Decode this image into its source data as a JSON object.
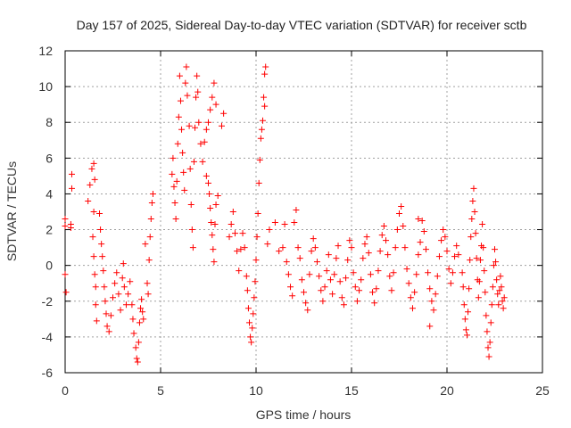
{
  "chart_data": {
    "type": "scatter",
    "title": "Day 157 of 2025, Sidereal Day-to-day VTEC variation (SDTVAR) for receiver sctb",
    "xlabel": "GPS time / hours",
    "ylabel": "SDTVAR / TECUs",
    "xlim": [
      0,
      25
    ],
    "ylim": [
      -6,
      12
    ],
    "xticks": [
      0,
      5,
      10,
      15,
      20,
      25
    ],
    "yticks": [
      -6,
      -4,
      -2,
      0,
      2,
      4,
      6,
      8,
      10,
      12
    ],
    "grid": true,
    "marker": "+",
    "colors": {
      "series": "#ff0000",
      "grid": "#a0a0a0",
      "axis": "#000000"
    },
    "series": [
      {
        "name": "SDTVAR",
        "points": [
          [
            0.0,
            -0.5
          ],
          [
            0.0,
            2.6
          ],
          [
            0.0,
            2.2
          ],
          [
            0.05,
            -1.5
          ],
          [
            0.3,
            2.3
          ],
          [
            0.3,
            2.1
          ],
          [
            0.35,
            4.3
          ],
          [
            0.35,
            5.1
          ],
          [
            1.2,
            3.6
          ],
          [
            1.3,
            4.5
          ],
          [
            1.4,
            5.4
          ],
          [
            1.5,
            5.7
          ],
          [
            1.55,
            4.8
          ],
          [
            1.5,
            3.0
          ],
          [
            1.45,
            1.6
          ],
          [
            1.5,
            0.5
          ],
          [
            1.55,
            -0.5
          ],
          [
            1.6,
            -1.2
          ],
          [
            1.6,
            -2.2
          ],
          [
            1.65,
            -3.1
          ],
          [
            1.8,
            2.9
          ],
          [
            1.85,
            2.0
          ],
          [
            1.9,
            1.2
          ],
          [
            1.95,
            0.5
          ],
          [
            2.0,
            -0.3
          ],
          [
            2.05,
            -1.2
          ],
          [
            2.1,
            -2.0
          ],
          [
            2.15,
            -2.7
          ],
          [
            2.2,
            -3.4
          ],
          [
            2.3,
            -3.7
          ],
          [
            2.4,
            -2.8
          ],
          [
            2.5,
            -1.8
          ],
          [
            2.6,
            -1.0
          ],
          [
            2.7,
            -0.4
          ],
          [
            2.8,
            -1.6
          ],
          [
            2.9,
            -2.5
          ],
          [
            3.0,
            -0.7
          ],
          [
            3.05,
            0.1
          ],
          [
            3.1,
            -1.2
          ],
          [
            3.2,
            -2.2
          ],
          [
            3.3,
            -1.6
          ],
          [
            3.4,
            -0.9
          ],
          [
            3.5,
            -2.2
          ],
          [
            3.55,
            -3.0
          ],
          [
            3.6,
            -3.8
          ],
          [
            3.7,
            -4.6
          ],
          [
            3.75,
            -5.2
          ],
          [
            3.8,
            -5.4
          ],
          [
            3.85,
            -4.3
          ],
          [
            3.9,
            -3.2
          ],
          [
            3.95,
            -2.4
          ],
          [
            4.0,
            -1.9
          ],
          [
            4.05,
            -2.6
          ],
          [
            4.1,
            -3.0
          ],
          [
            4.2,
            1.2
          ],
          [
            4.3,
            -1.0
          ],
          [
            4.35,
            -1.6
          ],
          [
            4.4,
            0.3
          ],
          [
            4.45,
            1.6
          ],
          [
            4.5,
            2.6
          ],
          [
            4.55,
            3.5
          ],
          [
            4.6,
            4.0
          ],
          [
            5.6,
            5.1
          ],
          [
            5.65,
            6.0
          ],
          [
            5.7,
            4.4
          ],
          [
            5.75,
            3.5
          ],
          [
            5.8,
            2.6
          ],
          [
            5.85,
            4.7
          ],
          [
            5.9,
            6.8
          ],
          [
            5.95,
            8.3
          ],
          [
            6.0,
            10.6
          ],
          [
            6.05,
            9.2
          ],
          [
            6.1,
            7.6
          ],
          [
            6.15,
            6.3
          ],
          [
            6.2,
            5.2
          ],
          [
            6.25,
            4.2
          ],
          [
            6.3,
            10.2
          ],
          [
            6.35,
            11.1
          ],
          [
            6.4,
            9.5
          ],
          [
            6.5,
            7.8
          ],
          [
            6.55,
            5.4
          ],
          [
            6.6,
            3.4
          ],
          [
            6.65,
            2.0
          ],
          [
            6.7,
            1.0
          ],
          [
            6.75,
            5.8
          ],
          [
            6.8,
            7.7
          ],
          [
            6.85,
            9.4
          ],
          [
            6.9,
            10.6
          ],
          [
            6.95,
            9.7
          ],
          [
            7.0,
            8.0
          ],
          [
            7.1,
            6.8
          ],
          [
            7.2,
            5.8
          ],
          [
            7.3,
            6.9
          ],
          [
            7.4,
            7.6
          ],
          [
            7.5,
            8.0
          ],
          [
            7.6,
            8.7
          ],
          [
            7.7,
            9.4
          ],
          [
            7.8,
            10.2
          ],
          [
            7.9,
            9.0
          ],
          [
            7.4,
            5.0
          ],
          [
            7.5,
            4.6
          ],
          [
            7.55,
            4.0
          ],
          [
            7.6,
            3.2
          ],
          [
            7.65,
            2.4
          ],
          [
            7.7,
            1.7
          ],
          [
            7.75,
            0.9
          ],
          [
            7.8,
            0.2
          ],
          [
            7.85,
            2.3
          ],
          [
            7.9,
            3.4
          ],
          [
            8.0,
            3.9
          ],
          [
            8.2,
            7.8
          ],
          [
            8.3,
            8.5
          ],
          [
            8.6,
            1.6
          ],
          [
            8.7,
            2.3
          ],
          [
            8.8,
            3.0
          ],
          [
            8.9,
            1.8
          ],
          [
            9.0,
            0.8
          ],
          [
            9.1,
            -0.3
          ],
          [
            9.2,
            0.9
          ],
          [
            9.3,
            1.8
          ],
          [
            9.4,
            1.0
          ],
          [
            9.5,
            -0.6
          ],
          [
            9.55,
            -1.4
          ],
          [
            9.6,
            -2.4
          ],
          [
            9.65,
            -3.2
          ],
          [
            9.7,
            -4.0
          ],
          [
            9.75,
            -4.3
          ],
          [
            9.8,
            -3.5
          ],
          [
            9.85,
            -2.7
          ],
          [
            9.9,
            -1.8
          ],
          [
            9.95,
            -0.9
          ],
          [
            10.0,
            0.3
          ],
          [
            10.05,
            1.6
          ],
          [
            10.1,
            2.9
          ],
          [
            10.15,
            4.6
          ],
          [
            10.2,
            5.9
          ],
          [
            10.25,
            7.1
          ],
          [
            10.3,
            7.6
          ],
          [
            10.35,
            8.1
          ],
          [
            10.4,
            9.4
          ],
          [
            10.45,
            10.7
          ],
          [
            10.5,
            11.1
          ],
          [
            10.45,
            8.9
          ],
          [
            10.6,
            1.2
          ],
          [
            10.7,
            2.0
          ],
          [
            11.0,
            2.4
          ],
          [
            11.2,
            0.8
          ],
          [
            11.4,
            1.0
          ],
          [
            11.5,
            2.3
          ],
          [
            11.6,
            0.2
          ],
          [
            11.7,
            -0.5
          ],
          [
            11.8,
            -1.2
          ],
          [
            11.9,
            -1.7
          ],
          [
            12.0,
            2.4
          ],
          [
            12.1,
            3.1
          ],
          [
            12.2,
            1.0
          ],
          [
            12.3,
            0.4
          ],
          [
            12.4,
            -0.8
          ],
          [
            12.5,
            -1.5
          ],
          [
            12.6,
            -2.1
          ],
          [
            12.7,
            -2.5
          ],
          [
            12.8,
            -0.5
          ],
          [
            12.9,
            0.8
          ],
          [
            13.0,
            1.5
          ],
          [
            13.1,
            1.0
          ],
          [
            13.2,
            0.2
          ],
          [
            13.3,
            -0.6
          ],
          [
            13.4,
            -1.4
          ],
          [
            13.5,
            -2.0
          ],
          [
            13.6,
            -1.2
          ],
          [
            13.7,
            -0.3
          ],
          [
            13.8,
            0.6
          ],
          [
            13.9,
            -0.8
          ],
          [
            14.0,
            -1.6
          ],
          [
            14.1,
            -0.5
          ],
          [
            14.2,
            0.4
          ],
          [
            14.3,
            1.1
          ],
          [
            14.4,
            -0.9
          ],
          [
            14.5,
            -1.8
          ],
          [
            14.6,
            -2.2
          ],
          [
            14.7,
            -0.7
          ],
          [
            14.8,
            0.3
          ],
          [
            14.9,
            1.4
          ],
          [
            15.0,
            1.0
          ],
          [
            15.1,
            -0.4
          ],
          [
            15.2,
            -1.2
          ],
          [
            15.3,
            -2.0
          ],
          [
            15.4,
            -1.4
          ],
          [
            15.5,
            -0.8
          ],
          [
            15.6,
            0.4
          ],
          [
            15.7,
            1.2
          ],
          [
            15.8,
            1.6
          ],
          [
            15.9,
            0.7
          ],
          [
            16.0,
            -0.5
          ],
          [
            16.1,
            -1.5
          ],
          [
            16.2,
            -2.1
          ],
          [
            16.3,
            -1.3
          ],
          [
            16.4,
            -0.3
          ],
          [
            16.5,
            0.8
          ],
          [
            16.6,
            1.7
          ],
          [
            16.7,
            2.2
          ],
          [
            16.8,
            1.4
          ],
          [
            16.9,
            0.6
          ],
          [
            17.0,
            -0.6
          ],
          [
            17.1,
            -1.4
          ],
          [
            17.2,
            -0.4
          ],
          [
            17.3,
            1.0
          ],
          [
            17.4,
            2.0
          ],
          [
            17.5,
            2.9
          ],
          [
            17.6,
            3.3
          ],
          [
            17.7,
            2.2
          ],
          [
            17.8,
            1.0
          ],
          [
            17.9,
            -0.2
          ],
          [
            18.0,
            -1.0
          ],
          [
            18.1,
            -1.8
          ],
          [
            18.2,
            -2.4
          ],
          [
            18.3,
            -1.5
          ],
          [
            18.4,
            -0.5
          ],
          [
            18.5,
            0.6
          ],
          [
            18.6,
            1.3
          ],
          [
            18.7,
            2.5
          ],
          [
            18.8,
            1.9
          ],
          [
            18.9,
            0.9
          ],
          [
            19.0,
            -0.4
          ],
          [
            19.1,
            -1.3
          ],
          [
            19.2,
            -2.0
          ],
          [
            19.3,
            -2.5
          ],
          [
            19.4,
            -1.6
          ],
          [
            19.5,
            -0.6
          ],
          [
            19.6,
            0.5
          ],
          [
            19.7,
            1.4
          ],
          [
            19.8,
            2.0
          ],
          [
            19.9,
            1.6
          ],
          [
            20.0,
            0.8
          ],
          [
            20.1,
            -0.2
          ],
          [
            20.2,
            -1.0
          ],
          [
            20.3,
            -0.4
          ],
          [
            20.4,
            0.5
          ],
          [
            20.5,
            1.1
          ],
          [
            20.6,
            0.6
          ],
          [
            19.1,
            -3.4
          ],
          [
            18.5,
            2.6
          ],
          [
            20.8,
            -0.4
          ],
          [
            20.85,
            -1.2
          ],
          [
            20.9,
            -2.2
          ],
          [
            20.95,
            -3.0
          ],
          [
            21.0,
            -3.6
          ],
          [
            21.05,
            -3.9
          ],
          [
            21.1,
            -2.6
          ],
          [
            21.15,
            -1.3
          ],
          [
            21.2,
            0.3
          ],
          [
            21.25,
            1.6
          ],
          [
            21.3,
            2.6
          ],
          [
            21.35,
            3.6
          ],
          [
            21.4,
            4.3
          ],
          [
            21.45,
            3.0
          ],
          [
            21.5,
            1.8
          ],
          [
            21.55,
            0.4
          ],
          [
            21.6,
            -0.8
          ],
          [
            21.65,
            -1.8
          ],
          [
            21.7,
            -0.9
          ],
          [
            21.75,
            0.3
          ],
          [
            21.8,
            1.1
          ],
          [
            21.85,
            2.3
          ],
          [
            21.9,
            1.0
          ],
          [
            21.95,
            -0.3
          ],
          [
            22.0,
            -1.5
          ],
          [
            22.05,
            -2.8
          ],
          [
            22.1,
            -3.7
          ],
          [
            22.15,
            -4.6
          ],
          [
            22.2,
            -5.1
          ],
          [
            22.25,
            -4.3
          ],
          [
            22.3,
            -3.2
          ],
          [
            22.35,
            -2.2
          ],
          [
            22.4,
            -1.2
          ],
          [
            22.45,
            0.0
          ],
          [
            22.5,
            0.9
          ],
          [
            22.55,
            0.2
          ],
          [
            22.6,
            -0.8
          ],
          [
            22.65,
            -1.6
          ],
          [
            22.7,
            -2.2
          ],
          [
            22.75,
            -1.4
          ],
          [
            22.8,
            -0.6
          ],
          [
            22.85,
            -1.2
          ],
          [
            22.9,
            -2.0
          ],
          [
            22.95,
            -2.4
          ],
          [
            23.0,
            -1.8
          ]
        ]
      }
    ]
  }
}
